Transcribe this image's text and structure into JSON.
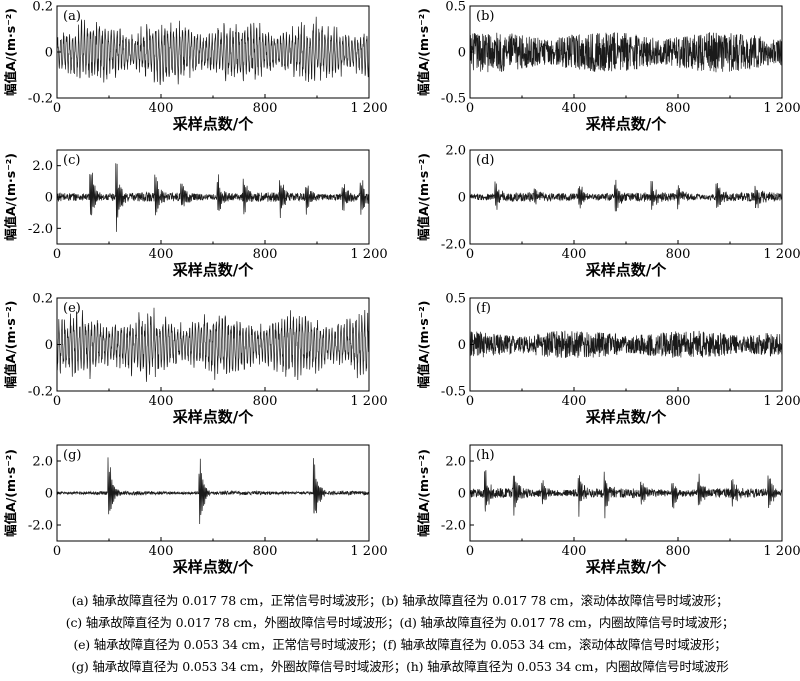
{
  "chart_data": [
    {
      "type": "line",
      "id": "a",
      "panel_label": "(a)",
      "ylabel": "幅值A/(m·s⁻²)",
      "xlabel": "采样点数/个",
      "xlim": [
        0,
        1200
      ],
      "ylim": [
        -0.2,
        0.2
      ],
      "xticks": [
        "0",
        "400",
        "800",
        "1 200"
      ],
      "yticks": [
        "-0.2",
        "0",
        "0.2"
      ],
      "ytick_values": [
        -0.2,
        0,
        0.2
      ],
      "amplitude": 0.16,
      "style": "smooth",
      "samples": 1200
    },
    {
      "type": "line",
      "id": "b",
      "panel_label": "(b)",
      "ylabel": "幅值A/(m·s⁻²)",
      "xlabel": "采样点数/个",
      "xlim": [
        0,
        1200
      ],
      "ylim": [
        -0.5,
        0.5
      ],
      "xticks": [
        "0",
        "400",
        "800",
        "1 200"
      ],
      "yticks": [
        "-0.5",
        "0",
        "0.5"
      ],
      "ytick_values": [
        -0.5,
        0,
        0.5
      ],
      "amplitude": 0.22,
      "style": "noise",
      "samples": 1200
    },
    {
      "type": "line",
      "id": "c",
      "panel_label": "(c)",
      "ylabel": "幅值A/(m·s⁻²)",
      "xlabel": "采样点数/个",
      "xlim": [
        0,
        1200
      ],
      "ylim": [
        -3,
        3
      ],
      "xticks": [
        "0",
        "400",
        "800",
        "1 200"
      ],
      "yticks": [
        "-2.0",
        "0",
        "2.0"
      ],
      "ytick_values": [
        -2,
        0,
        2
      ],
      "amplitude": 0.3,
      "style": "bursts",
      "bursts": [
        [
          130,
          2.3
        ],
        [
          230,
          2.5
        ],
        [
          380,
          1.6
        ],
        [
          480,
          1.4
        ],
        [
          620,
          1.5
        ],
        [
          720,
          1.3
        ],
        [
          860,
          1.4
        ],
        [
          960,
          1.2
        ],
        [
          1100,
          1.1
        ],
        [
          1170,
          1.4
        ]
      ],
      "samples": 1200
    },
    {
      "type": "line",
      "id": "d",
      "panel_label": "(d)",
      "ylabel": "幅值A/(m·s⁻²)",
      "xlabel": "采样点数/个",
      "xlim": [
        0,
        1200
      ],
      "ylim": [
        -2,
        2
      ],
      "xticks": [
        "0",
        "400",
        "800",
        "1 200"
      ],
      "yticks": [
        "-2.0",
        "0",
        "2.0"
      ],
      "ytick_values": [
        -2,
        0,
        2
      ],
      "amplitude": 0.2,
      "style": "spikes",
      "bursts": [
        [
          100,
          0.8
        ],
        [
          250,
          0.7
        ],
        [
          420,
          0.8
        ],
        [
          560,
          0.9
        ],
        [
          700,
          0.7
        ],
        [
          800,
          0.6
        ],
        [
          950,
          0.8
        ],
        [
          1100,
          0.7
        ]
      ],
      "samples": 1200
    },
    {
      "type": "line",
      "id": "e",
      "panel_label": "(e)",
      "ylabel": "幅值A/(m·s⁻²)",
      "xlabel": "采样点数/个",
      "xlim": [
        0,
        1200
      ],
      "ylim": [
        -0.2,
        0.2
      ],
      "xticks": [
        "0",
        "400",
        "800",
        "1 200"
      ],
      "yticks": [
        "-0.2",
        "0",
        "0.2"
      ],
      "ytick_values": [
        -0.2,
        0,
        0.2
      ],
      "amplitude": 0.17,
      "style": "smooth",
      "samples": 1200
    },
    {
      "type": "line",
      "id": "f",
      "panel_label": "(f)",
      "ylabel": "幅值A/(m·s⁻²)",
      "xlabel": "采样点数/个",
      "xlim": [
        0,
        1200
      ],
      "ylim": [
        -0.5,
        0.5
      ],
      "xticks": [
        "0",
        "400",
        "800",
        "1 200"
      ],
      "yticks": [
        "-0.5",
        "0",
        "0.5"
      ],
      "ytick_values": [
        -0.5,
        0,
        0.5
      ],
      "amplitude": 0.15,
      "style": "noise",
      "samples": 1200
    },
    {
      "type": "line",
      "id": "g",
      "panel_label": "(g)",
      "ylabel": "幅值A/(m·s⁻²)",
      "xlabel": "采样点数/个",
      "xlim": [
        0,
        1200
      ],
      "ylim": [
        -3,
        3
      ],
      "xticks": [
        "0",
        "400",
        "800",
        "1 200"
      ],
      "yticks": [
        "-2.0",
        "0",
        "2.0"
      ],
      "ytick_values": [
        -2,
        0,
        2
      ],
      "amplitude": 0.12,
      "style": "bursts",
      "bursts": [
        [
          200,
          2.6
        ],
        [
          550,
          2.7
        ],
        [
          990,
          2.6
        ]
      ],
      "samples": 1200
    },
    {
      "type": "line",
      "id": "h",
      "panel_label": "(h)",
      "ylabel": "幅值A/(m·s⁻²)",
      "xlabel": "采样点数/个",
      "xlim": [
        0,
        1200
      ],
      "ylim": [
        -3,
        3
      ],
      "xticks": [
        "0",
        "400",
        "800",
        "1 200"
      ],
      "yticks": [
        "-2.0",
        "0",
        "2.0"
      ],
      "ytick_values": [
        -2,
        0,
        2
      ],
      "amplitude": 0.3,
      "style": "bursts",
      "bursts": [
        [
          60,
          1.8
        ],
        [
          170,
          1.4
        ],
        [
          280,
          1.0
        ],
        [
          420,
          1.6
        ],
        [
          520,
          1.5
        ],
        [
          660,
          1.0
        ],
        [
          780,
          1.2
        ],
        [
          880,
          1.4
        ],
        [
          1010,
          1.2
        ],
        [
          1150,
          1.3
        ]
      ],
      "samples": 1200
    }
  ],
  "captions": [
    "(a) 轴承故障直径为 0.017 78 cm，正常信号时域波形；(b) 轴承故障直径为 0.017 78 cm，滚动体故障信号时域波形；",
    "(c) 轴承故障直径为 0.017 78 cm，外圈故障信号时域波形；(d) 轴承故障直径为 0.017 78 cm，内圈故障信号时域波形；",
    "(e) 轴承故障直径为 0.053 34 cm，正常信号时域波形；(f) 轴承故障直径为 0.053 34 cm，滚动体故障信号时域波形；",
    "(g) 轴承故障直径为 0.053 34 cm，外圈故障信号时域波形；(h) 轴承故障直径为 0.053 34 cm，内圈故障信号时域波形"
  ]
}
